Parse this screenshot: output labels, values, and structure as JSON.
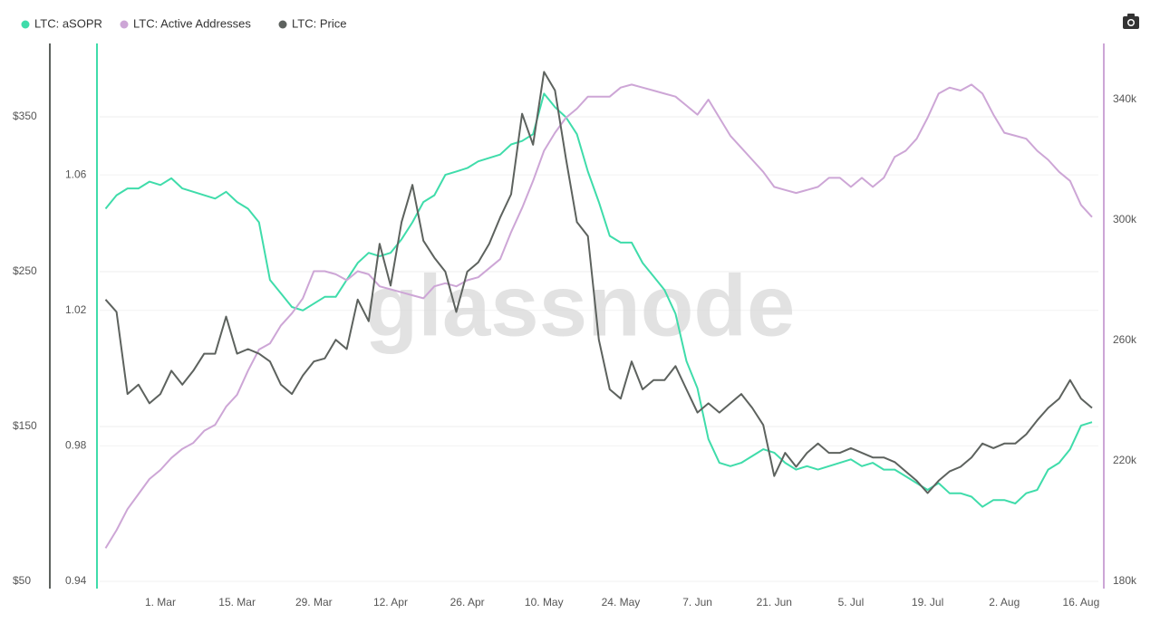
{
  "chart_data": {
    "type": "line",
    "watermark": "glassnode",
    "categories": [
      null,
      null,
      null,
      null,
      null,
      "1. Mar",
      null,
      null,
      null,
      null,
      null,
      null,
      "15. Mar",
      null,
      null,
      null,
      null,
      null,
      null,
      "29. Mar",
      null,
      null,
      null,
      null,
      null,
      null,
      "12. Apr",
      null,
      null,
      null,
      null,
      null,
      null,
      "26. Apr",
      null,
      null,
      null,
      null,
      null,
      null,
      "10. May",
      null,
      null,
      null,
      null,
      null,
      null,
      "24. May",
      null,
      null,
      null,
      null,
      null,
      null,
      "7. Jun",
      null,
      null,
      null,
      null,
      null,
      null,
      "21. Jun",
      null,
      null,
      null,
      null,
      null,
      null,
      "5. Jul",
      null,
      null,
      null,
      null,
      null,
      null,
      "19. Jul",
      null,
      null,
      null,
      null,
      null,
      null,
      "2. Aug",
      null,
      null,
      null,
      null,
      null,
      null,
      "16. Aug",
      null
    ],
    "ylim": [
      50,
      400
    ],
    "yticks": [
      {
        "value": 50,
        "label": "$50"
      },
      {
        "value": 150,
        "label": "$150"
      },
      {
        "value": 250,
        "label": "$250"
      },
      {
        "value": 350,
        "label": "$350"
      }
    ],
    "y3lim": [
      0.94,
      1.1
    ],
    "y3ticks": [
      0.94,
      0.98,
      1.02,
      1.06
    ],
    "y2lim": [
      180000,
      360000
    ],
    "y2ticks": [
      {
        "value": 180000,
        "label": "180k"
      },
      {
        "value": 220000,
        "label": "220k"
      },
      {
        "value": 260000,
        "label": "260k"
      },
      {
        "value": 300000,
        "label": "300k"
      },
      {
        "value": 340000,
        "label": "340k"
      }
    ],
    "grid": true,
    "series": [
      {
        "name": "LTC: aSOPR",
        "color": "#3fdcaa",
        "axis": "y3",
        "values": [
          1.05,
          1.054,
          1.056,
          1.056,
          1.058,
          1.057,
          1.059,
          1.056,
          1.055,
          1.054,
          1.053,
          1.055,
          1.052,
          1.05,
          1.046,
          1.029,
          1.025,
          1.021,
          1.02,
          1.022,
          1.024,
          1.024,
          1.029,
          1.034,
          1.037,
          1.036,
          1.037,
          1.041,
          1.046,
          1.052,
          1.054,
          1.06,
          1.061,
          1.062,
          1.064,
          1.065,
          1.066,
          1.069,
          1.07,
          1.072,
          1.084,
          1.08,
          1.077,
          1.072,
          1.061,
          1.052,
          1.042,
          1.04,
          1.04,
          1.034,
          1.03,
          1.026,
          1.019,
          1.005,
          0.997,
          0.982,
          0.975,
          0.974,
          0.975,
          0.977,
          0.979,
          0.978,
          0.975,
          0.973,
          0.974,
          0.973,
          0.974,
          0.975,
          0.976,
          0.974,
          0.975,
          0.973,
          0.973,
          0.971,
          0.969,
          0.967,
          0.969,
          0.966,
          0.966,
          0.965,
          0.962,
          0.964,
          0.964,
          0.963,
          0.966,
          0.967,
          0.973,
          0.975,
          0.979,
          0.986,
          0.987
        ]
      },
      {
        "name": "LTC: Active Addresses",
        "color": "#cda6d6",
        "axis": "y2",
        "values": [
          191000,
          197000,
          204000,
          209000,
          214000,
          217000,
          221000,
          224000,
          226000,
          230000,
          232000,
          238000,
          242000,
          250000,
          257000,
          259000,
          265000,
          269000,
          274000,
          283000,
          283000,
          282000,
          280000,
          283000,
          282000,
          278000,
          277000,
          276000,
          275000,
          274000,
          278000,
          279000,
          278000,
          280000,
          281000,
          284000,
          287000,
          296000,
          304000,
          313000,
          323000,
          329000,
          334000,
          337000,
          341000,
          341000,
          341000,
          344000,
          345000,
          344000,
          343000,
          342000,
          341000,
          338000,
          335000,
          340000,
          334000,
          328000,
          324000,
          320000,
          316000,
          311000,
          310000,
          309000,
          310000,
          311000,
          314000,
          314000,
          311000,
          314000,
          311000,
          314000,
          321000,
          323000,
          327000,
          334000,
          342000,
          344000,
          343000,
          345000,
          342000,
          335000,
          329000,
          328000,
          327000,
          323000,
          320000,
          316000,
          313000,
          305000,
          301000
        ]
      },
      {
        "name": "LTC: Price",
        "color": "#5d625e",
        "axis": "y",
        "values": [
          232,
          224,
          171,
          177,
          165,
          171,
          186,
          177,
          186,
          197,
          197,
          221,
          197,
          200,
          197,
          192,
          177,
          171,
          183,
          192,
          194,
          206,
          200,
          232,
          218,
          268,
          241,
          282,
          306,
          270,
          259,
          250,
          224,
          250,
          256,
          268,
          285,
          300,
          352,
          332,
          379,
          367,
          323,
          282,
          273,
          206,
          174,
          168,
          192,
          174,
          180,
          180,
          189,
          174,
          159,
          165,
          159,
          165,
          171,
          162,
          151,
          118,
          133,
          124,
          133,
          139,
          133,
          133,
          136,
          133,
          130,
          130,
          127,
          121,
          115,
          107,
          115,
          121,
          124,
          130,
          139,
          136,
          139,
          139,
          145,
          154,
          162,
          168,
          180,
          168,
          162
        ]
      }
    ]
  }
}
